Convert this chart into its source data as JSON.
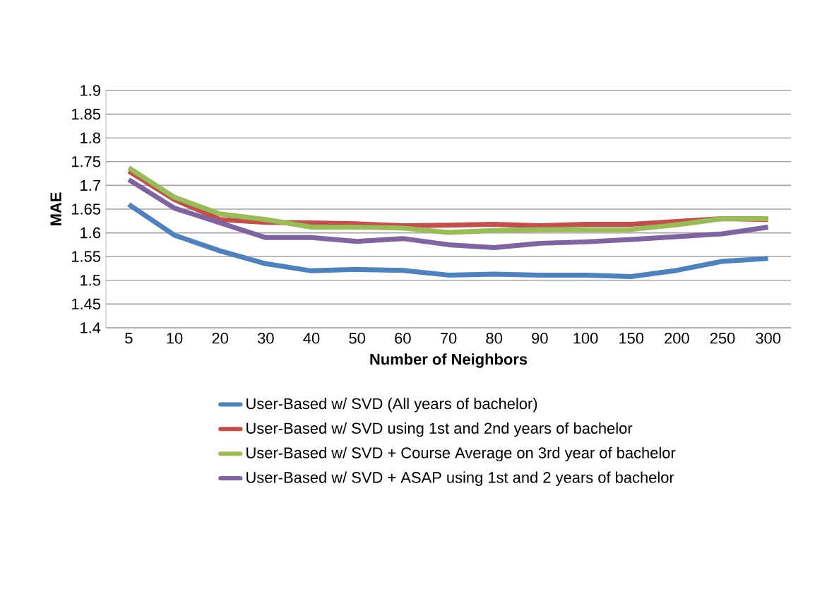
{
  "chart_data": {
    "type": "line",
    "xlabel": "Number of Neighbors",
    "ylabel": "MAE",
    "categories": [
      "5",
      "10",
      "20",
      "30",
      "40",
      "50",
      "60",
      "70",
      "80",
      "90",
      "100",
      "150",
      "200",
      "250",
      "300"
    ],
    "series": [
      {
        "name": "User-Based w/ SVD (All years of bachelor)",
        "color": "#4f81bd",
        "values": [
          1.66,
          1.595,
          1.562,
          1.535,
          1.52,
          1.523,
          1.521,
          1.511,
          1.513,
          1.511,
          1.511,
          1.508,
          1.521,
          1.54,
          1.546
        ]
      },
      {
        "name": "User-Based w/ SVD using 1st and 2nd years of bachelor",
        "color": "#c0504d",
        "values": [
          1.73,
          1.67,
          1.628,
          1.622,
          1.621,
          1.619,
          1.615,
          1.616,
          1.618,
          1.615,
          1.618,
          1.618,
          1.624,
          1.63,
          1.628
        ]
      },
      {
        "name": "User-Based w/ SVD  + Course Average on 3rd year of bachelor",
        "color": "#9bbb59",
        "values": [
          1.737,
          1.675,
          1.64,
          1.628,
          1.612,
          1.612,
          1.61,
          1.601,
          1.605,
          1.607,
          1.607,
          1.607,
          1.617,
          1.63,
          1.63
        ]
      },
      {
        "name": "User-Based w/ SVD  + ASAP using 1st and 2 years of bachelor",
        "color": "#8064a2",
        "values": [
          1.712,
          1.652,
          1.621,
          1.59,
          1.59,
          1.582,
          1.588,
          1.575,
          1.569,
          1.578,
          1.581,
          1.586,
          1.592,
          1.598,
          1.612
        ]
      }
    ],
    "ylim": [
      1.4,
      1.9
    ],
    "yticks": [
      1.4,
      1.45,
      1.5,
      1.55,
      1.6,
      1.65,
      1.7,
      1.75,
      1.8,
      1.85,
      1.9
    ],
    "grid": "y",
    "legend": "bottom",
    "marker": "none",
    "line_style": "solid"
  }
}
